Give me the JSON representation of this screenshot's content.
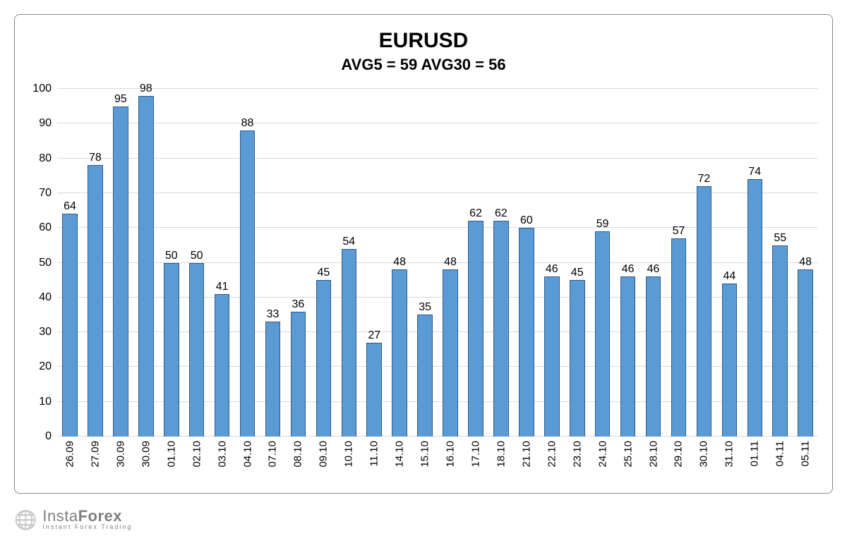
{
  "chart": {
    "type": "bar",
    "title": "EURUSD",
    "subtitle": "AVG5 = 59 AVG30 = 56",
    "title_fontsize": 30,
    "subtitle_fontsize": 22,
    "label_fontsize": 16,
    "xlabel_fontsize": 15,
    "ylim": [
      0,
      100
    ],
    "ytick_step": 10,
    "yticks": [
      0,
      10,
      20,
      30,
      40,
      50,
      60,
      70,
      80,
      90,
      100
    ],
    "grid_color": "#d9d9d9",
    "baseline_color": "#666666",
    "background_color": "#ffffff",
    "border_color": "#8a8a8a",
    "bar_color": "#5b9bd5",
    "bar_border_color": "#2f5a8a",
    "bar_width": 0.6,
    "text_color": "#000000",
    "categories": [
      "26.09",
      "27.09",
      "30.09",
      "30.09",
      "01.10",
      "02.10",
      "03.10",
      "04.10",
      "07.10",
      "08.10",
      "09.10",
      "10.10",
      "11.10",
      "14.10",
      "15.10",
      "16.10",
      "17.10",
      "18.10",
      "21.10",
      "22.10",
      "23.10",
      "24.10",
      "25.10",
      "28.10",
      "29.10",
      "30.10",
      "31.10",
      "01.11",
      "04.11",
      "05.11"
    ],
    "values": [
      64,
      78,
      95,
      98,
      50,
      50,
      41,
      88,
      33,
      36,
      45,
      54,
      27,
      48,
      35,
      48,
      62,
      62,
      60,
      46,
      45,
      59,
      46,
      46,
      57,
      72,
      44,
      74,
      55,
      48
    ]
  },
  "watermark": {
    "brand_prefix": "Insta",
    "brand_suffix": "Forex",
    "tagline": "Instant Forex Trading",
    "logo_glyph": "🌐"
  }
}
